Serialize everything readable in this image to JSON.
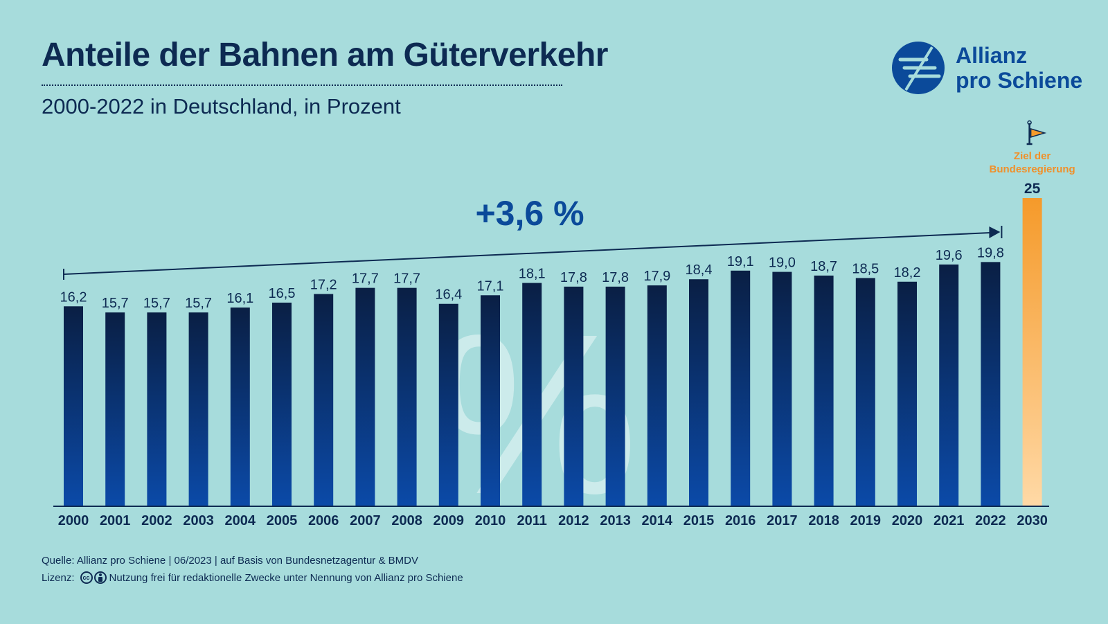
{
  "header": {
    "title": "Anteile der Bahnen am Güterverkehr",
    "subtitle": "2000-2022 in Deutschland, in Prozent"
  },
  "logo": {
    "line1": "Allianz",
    "line2": "pro Schiene",
    "icon": "allianz-pro-schiene-logo-icon"
  },
  "footer": {
    "source": "Quelle: Allianz pro Schiene | 06/2023 | auf Basis von Bundesnetzagentur & BMDV",
    "license_label": "Lizenz:",
    "license_text": "Nutzung frei für redaktionelle Zwecke unter Nennung von Allianz pro Schiene"
  },
  "colors": {
    "background": "#a7dcdc",
    "bar_top": "#0a1f44",
    "bar_bottom": "#0b4aa8",
    "target_top": "#f59a2a",
    "target_bottom": "#ffd9a6",
    "text": "#0d2a52",
    "accent_blue": "#0b4a9a",
    "target_label": "#f0902a"
  },
  "chart_data": {
    "type": "bar",
    "categories": [
      "2000",
      "2001",
      "2002",
      "2003",
      "2004",
      "2005",
      "2006",
      "2007",
      "2008",
      "2009",
      "2010",
      "2011",
      "2012",
      "2013",
      "2014",
      "2015",
      "2016",
      "2017",
      "2018",
      "2019",
      "2020",
      "2021",
      "2022",
      "2030"
    ],
    "values": [
      16.2,
      15.7,
      15.7,
      15.7,
      16.1,
      16.5,
      17.2,
      17.7,
      17.7,
      16.4,
      17.1,
      18.1,
      17.8,
      17.8,
      17.9,
      18.4,
      19.1,
      19.0,
      18.7,
      18.5,
      18.2,
      19.6,
      19.8,
      25
    ],
    "value_labels": [
      "16,2",
      "15,7",
      "15,7",
      "15,7",
      "16,1",
      "16,5",
      "17,2",
      "17,7",
      "17,7",
      "16,4",
      "17,1",
      "18,1",
      "17,8",
      "17,8",
      "17,9",
      "18,4",
      "19,1",
      "19,0",
      "18,7",
      "18,5",
      "18,2",
      "19,6",
      "19,8",
      "25"
    ],
    "ylim": [
      0,
      25
    ],
    "grid": false,
    "target": {
      "category": "2030",
      "value": 25,
      "label_lines": [
        "Ziel der",
        "Bundesregierung"
      ],
      "icon": "flag-icon"
    },
    "annotation": {
      "text": "+3,6 %",
      "from": "2000",
      "to": "2022"
    },
    "watermark": "%"
  }
}
